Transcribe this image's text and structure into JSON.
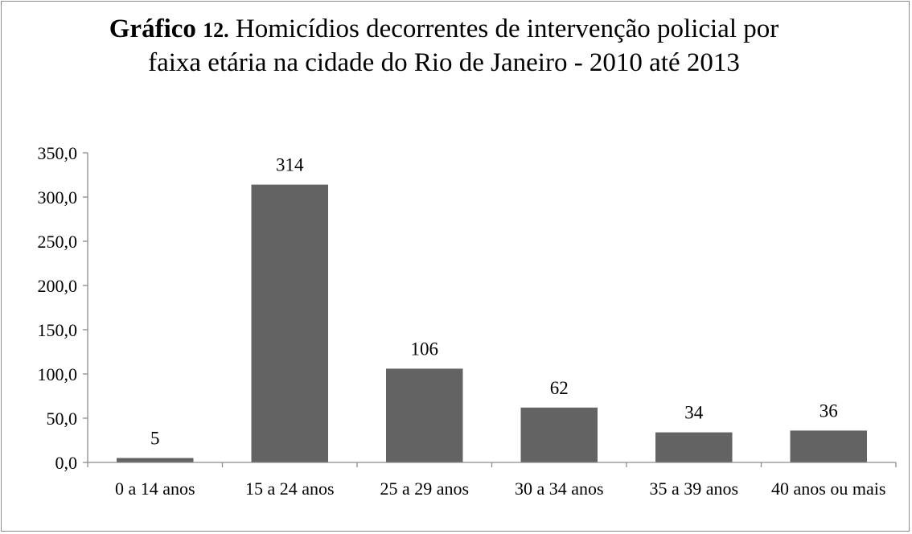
{
  "chart_data": {
    "type": "bar",
    "title_lead": "Gráfico",
    "title_number": "12.",
    "title": "Homicídios decorrentes de intervenção policial por faixa etária na cidade do Rio de Janeiro - 2010 até 2013",
    "xlabel": "",
    "ylabel": "",
    "categories": [
      "0 a 14 anos",
      "15 a 24 anos",
      "25 a 29 anos",
      "30 a 34 anos",
      "35 a 39 anos",
      "40 anos ou mais"
    ],
    "values": [
      5,
      314,
      106,
      62,
      34,
      36
    ],
    "data_labels": [
      "5",
      "314",
      "106",
      "62",
      "34",
      "36"
    ],
    "ylim": [
      0,
      350
    ],
    "yticks": [
      0,
      50,
      100,
      150,
      200,
      250,
      300,
      350
    ],
    "ytick_labels": [
      "0,0",
      "50,0",
      "100,0",
      "150,0",
      "200,0",
      "250,0",
      "300,0",
      "350,0"
    ],
    "grid": false,
    "legend": "none",
    "bar_color": "#636363",
    "axis_color": "#8c8c8c"
  }
}
